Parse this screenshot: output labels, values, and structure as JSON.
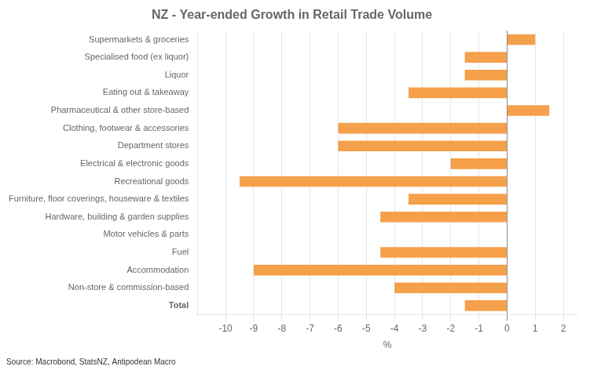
{
  "chart_data": {
    "type": "bar",
    "orientation": "horizontal",
    "title": "NZ - Year-ended Growth in Retail Trade Volume",
    "source": "Source: Macrobond, StatsNZ, Antipodean Macro",
    "xlabel": "%",
    "categories": [
      "Supermarkets & groceries",
      "Specialised food (ex liquor)",
      "Liquor",
      "Eating out & takeaway",
      "Pharmaceutical & other store-based",
      "Clothing, footwear & accessories",
      "Department stores",
      "Electrical & electronic goods",
      "Recreational goods",
      "Furniture, floor coverings, houseware & textiles",
      "Hardware, building & garden supplies",
      "Motor vehicles & parts",
      "Fuel",
      "Accommodation",
      "Non-store & commission-based",
      "Total"
    ],
    "values": [
      1.0,
      -1.5,
      -1.5,
      -3.5,
      1.5,
      -6.0,
      -6.0,
      -2.0,
      -9.5,
      -3.5,
      -4.5,
      0.0,
      -4.5,
      -9.0,
      -4.0,
      -1.5
    ],
    "color": "#f5a04a",
    "xlim": [
      -11,
      2.5
    ],
    "xticks": [
      -10,
      -9,
      -8,
      -7,
      -6,
      -5,
      -4,
      -3,
      -2,
      -1,
      0,
      1,
      2
    ],
    "grid": true
  }
}
